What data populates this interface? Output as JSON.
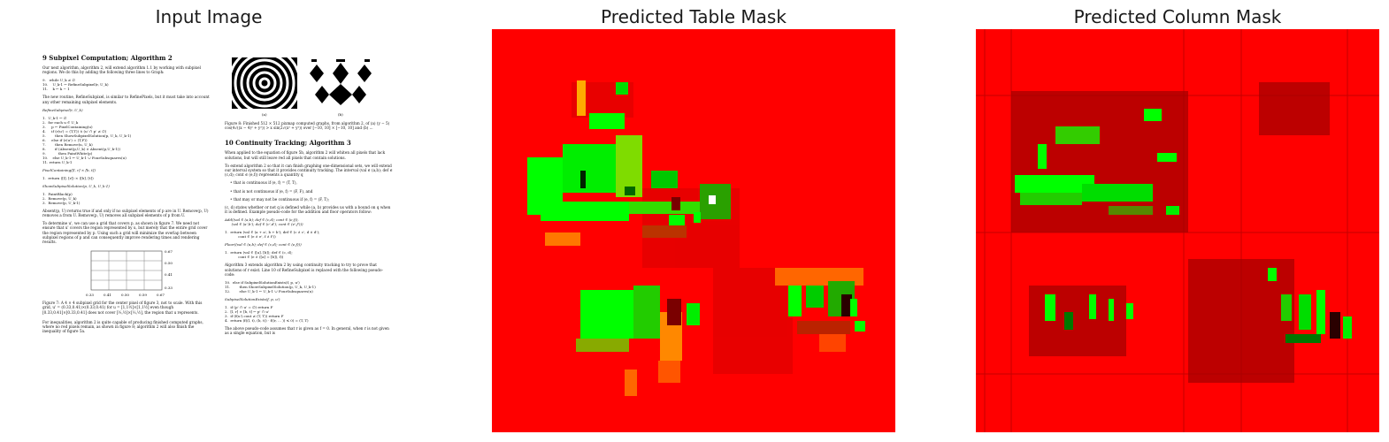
{
  "panels": [
    {
      "title": "Input Image"
    },
    {
      "title": "Predicted Table Mask"
    },
    {
      "title": "Predicted Column Mask"
    }
  ],
  "doc": {
    "sec9_title": "9  Subpixel Computation; Algorithm 2",
    "sec9_intro": "Our next algorithm, algorithm 2, will extend algorithm 1.1 by working with subpixel regions. We do this by adding the following three lines to Graph:",
    "sec9_code1": "9.   while U_k ≠ ∅\n10.    U_k-1 ← RefineSubpixel(r, U_k)\n11.    k ← k − 1",
    "sec9_p2": "The new routine, RefineSubpixel, is similar to RefinePixels, but it must take into account any other remaining subpixel elements.",
    "refine_header": "RefineSubpixel(r, U_k)",
    "refine_code": "1.  U_k-1 ← ∅\n2.  for each u ∈ U_k\n3.     p ← PixelContaining(u)\n4.     if (r(u') = (T,T)) ∧ (u' ∩ p' ≠ ∅)\n5.        then ShowSubpixelSolution(p, U_k, U_k-1)\n6.     else if (r(u') = (T,F))\n7.        then Remove(u, U_k)\n8.        if (Absent(p,U_k) ∧ Absent(p,U_k-1))\n9.           then PaintWhite(p)\n10.    else U_k-1 ← U_k-1 ∪ FourSubsquares(u)\n11. return U_k-1",
    "pixelcontaining": "PixelContaining([l, r] × [b, t])",
    "pixelcontaining_code": "1.  return ([l], [r]) × ([b], [t])",
    "showsub": "ShowSubpixelSolution(p, U_k, U_k-1)",
    "showsub_code": "1.  PaintBlack(p)\n2.  Remove(p, U_k)\n3.  Remove(p, U_k-1)",
    "sec9_p3": "Absent(p, U) returns true if and only if no subpixel elements of p are in U. Remove(p, U) removes a from U. Remove(p, U) removes all subpixel elements of p from U.",
    "sec9_p4": "To determine u', we can use a grid that covers p, as shown in figure 7. We need not ensure that u' covers the region represented by u, but merely that the entire grid cover the region represented by p. Using such a grid will minimize the overlap between subpixel regions of p and can consequently improve rendering times and rendering results.",
    "fig7_right_ticks": [
      "0.67",
      "0.50",
      "0.41",
      "0.33"
    ],
    "fig7_bottom_ticks": [
      "0.33",
      "0.41",
      "0.50",
      "0.59",
      "0.67"
    ],
    "fig7_caption": "Figure 7: A 4 × 4 subpixel grid for the center pixel of figure 3, not to scale. With this grid, u' = (0.33,0.41)×(0.33,0.41) for u = [1,1½]×[1,1½] even though [0.33,0.41]×[0.33,0.41] does not cover [⅓,½]×[⅓,½], the region that u represents.",
    "sec9_p5": "For inequalities, algorithm 2 is quite capable of producing finished computed graphs, where no red pixels remain, as shown in figure 8; algorithm 2 will also finish the inequality of figure 5a.",
    "fig8_labels": [
      "(a)",
      "(b)"
    ],
    "fig8_caption": "Figure 8: Finished 512 × 512 pixmap computed graphs, from algorithm 2, of (a) (y − 5) cos(4√((x − 4)² + y²)) > x sin(2√(x² + y²)) over [−10, 10] × [−10, 10] and (b) ...",
    "sec10_title": "10  Continuity Tracking; Algorithm 3",
    "sec10_p1": "When applied to the equation of figure 5b, algorithm 2 will whiten all pixels that lack solutions, but will still leave red all pixels that contain solutions.",
    "sec10_p2": "To extend algorithm 2 so that it can finish graphing one-dimensional sets, we will extend our interval system so that it provides continuity tracking. The interval (val ∈ (a,b); def ∈ (c,d); cont ∈ (e,f)) represents a quantity q",
    "bullets": [
      "that is continuous if (e, f) = (T, T),",
      "that is not continuous if (e, f) = (F, F), and",
      "that may or may not be continuous if (e, f) = (F, T);"
    ],
    "sec10_p3": "(c, d) states whether or not q is defined while (a, b) provides us with a bound on q when it is defined. Example pseudo-code for the addition and floor operators follow:",
    "add_header": "Add((val ∈ (a,b); def ∈ (c,d); cont ∈ (e,f)),\n      (val ∈ (a',b'); def ∈ (c',d'); cont ∈ (e',f')))",
    "add_code": "1.  return (val ∈ (a + a', b + b'); def ∈ (c ∧ c', d ∧ d');\n            cont ∈ (e ∧ e', f ∧ f'))",
    "floor_header": "Floor((val ∈ (a,b); def ∈ (c,d); cont ∈ (e,f)))",
    "floor_code": "1.  return (val ∈ ([a], [b]); def ∈ (c, d);\n            cont ∈ (e ∧ ([a] = [b]), f))",
    "sec10_p4": "Algorithm 3 extends algorithm 2 by using continuity tracking to try to prove that solutions of r exist. Line 10 of RefineSubpixel is replaced with the following pseudo-code:",
    "alg3_code": "10.  else if SubpixelSolutionExists(f, p, u')\n11.        then ShowSubpixelSolution(p, U_k, U_k-1)\n12.        else U_k-1 ← U_k-1 ∪ FourSubsquares(u)",
    "sse_header": "SubpixelSolutionExists(f, p, u')",
    "sse_code": "1.  if (p' ∩ u' = ∅) return F\n2.  [l, r] × [b, t] ← p' ∩ u'\n3.  if (f(u').cont ≠ (T, T)) return F\n4.  return (f((l, t), (b, t)) · f((r, ... )) ≤ 0) = (T, T)",
    "sec10_p5": "The above pseudo-code assumes that r is given as f = 0. In general, when r is not given as a single equation, but is"
  },
  "colors": {
    "background": "#ff0000",
    "positive": "#00ff00",
    "dark": "#7a0000",
    "text": "#1a1a1a"
  }
}
